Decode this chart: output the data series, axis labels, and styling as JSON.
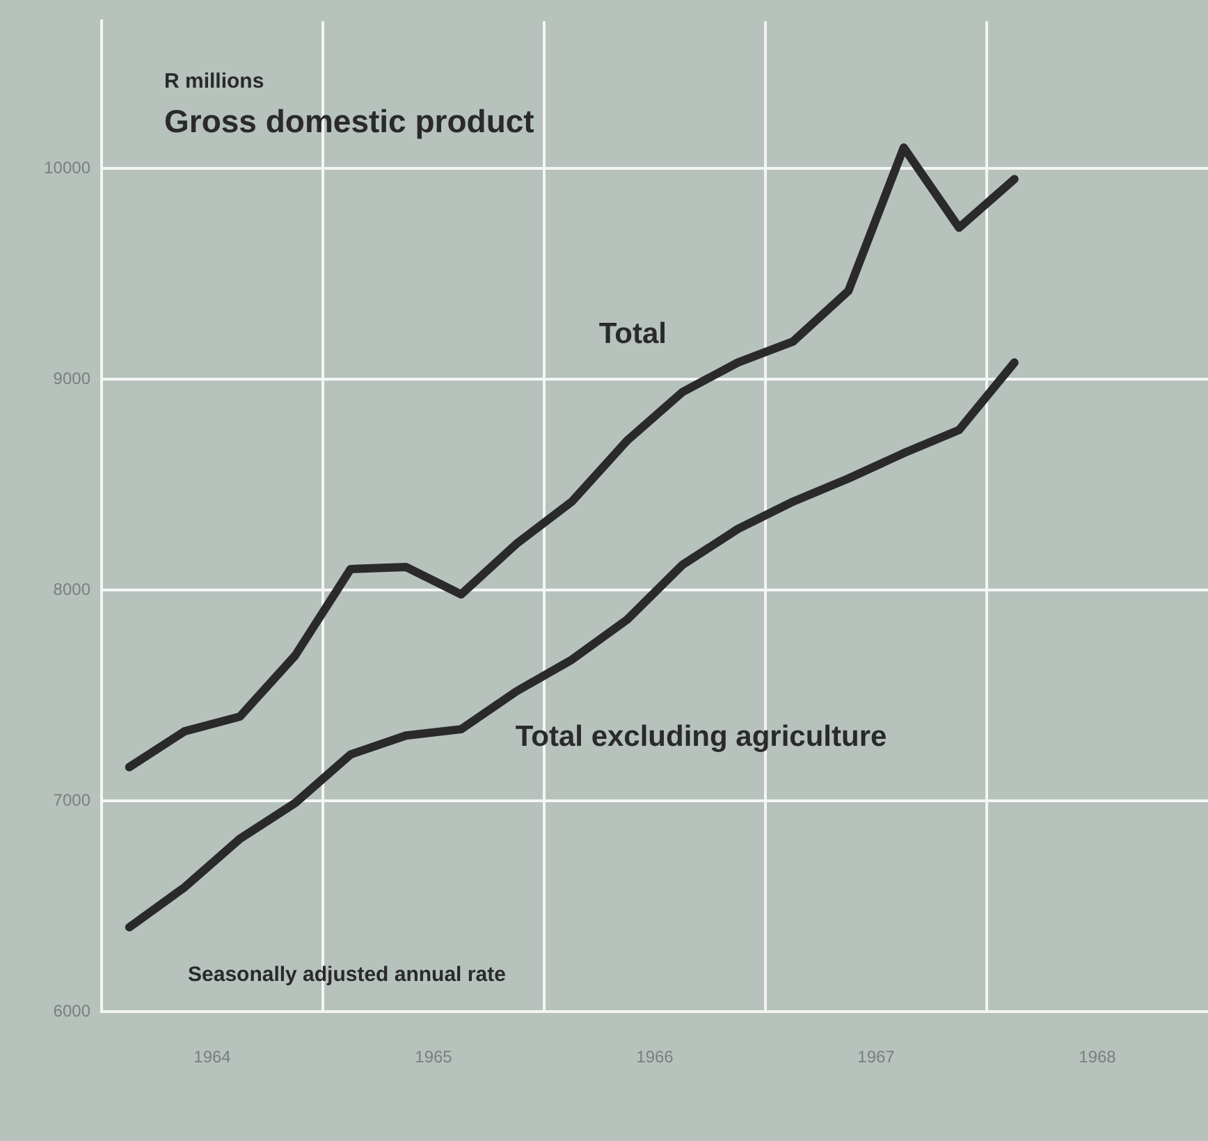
{
  "chart_data": {
    "type": "line",
    "title": "Gross domestic product",
    "ylabel": "R millions",
    "annotations": [
      "Seasonally adjusted annual rate"
    ],
    "x": [
      1964.125,
      1964.375,
      1964.625,
      1964.875,
      1965.125,
      1965.375,
      1965.625,
      1965.875,
      1966.125,
      1966.375,
      1966.625,
      1966.875,
      1967.125,
      1967.375,
      1967.625,
      1967.875,
      1968.125
    ],
    "series": [
      {
        "name": "Total",
        "color": "#2a2a2a",
        "values": [
          7160,
          7330,
          7400,
          7690,
          8100,
          8110,
          7980,
          8220,
          8420,
          8710,
          8940,
          9080,
          9180,
          9420,
          10100,
          9720,
          9950
        ]
      },
      {
        "name": "Total excluding agriculture",
        "color": "#2a2a2a",
        "values": [
          6400,
          6590,
          6820,
          6990,
          7220,
          7310,
          7340,
          7520,
          7670,
          7860,
          8120,
          8290,
          8420,
          8530,
          8650,
          8760,
          9080
        ]
      }
    ],
    "xlim": [
      1964,
      1969
    ],
    "xticks": [
      {
        "value": 1964.5,
        "label": "1964"
      },
      {
        "value": 1965,
        "label": null
      },
      {
        "value": 1965.5,
        "label": "1965"
      },
      {
        "value": 1966,
        "label": null
      },
      {
        "value": 1966.5,
        "label": "1966"
      },
      {
        "value": 1967,
        "label": null
      },
      {
        "value": 1967.5,
        "label": "1967"
      },
      {
        "value": 1968,
        "label": null
      },
      {
        "value": 1968.5,
        "label": "1968"
      }
    ],
    "ylim": [
      6000,
      10700
    ],
    "yticks": [
      6000,
      7000,
      8000,
      9000,
      10000
    ],
    "grid": true,
    "legend": false,
    "marker": "none",
    "line_style": "solid"
  }
}
